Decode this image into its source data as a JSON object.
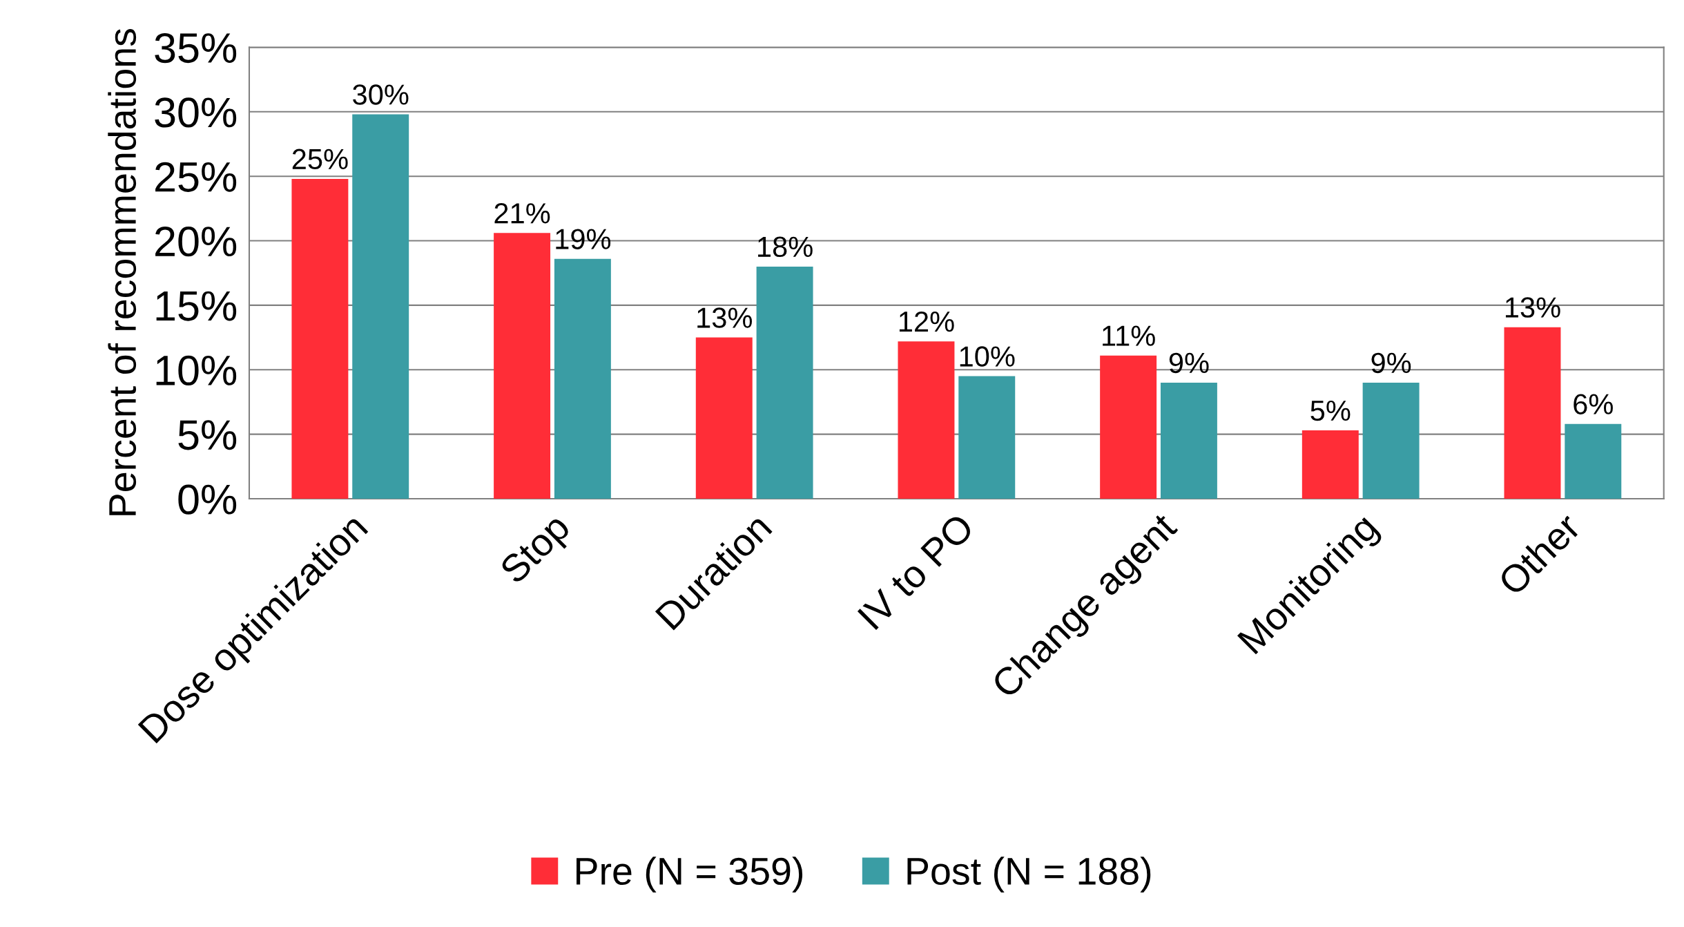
{
  "chart_data": {
    "type": "bar",
    "ylabel": "Percent of recommendations",
    "categories": [
      "Dose optimization",
      "Stop",
      "Duration",
      "IV to PO",
      "Change agent",
      "Monitoring",
      "Other"
    ],
    "series": [
      {
        "name": "Pre (N = 359)",
        "color": "#ff2d37",
        "values": [
          24.8,
          20.6,
          12.5,
          12.2,
          11.1,
          5.3,
          13.3
        ],
        "value_labels": [
          "25%",
          "21%",
          "13%",
          "12%",
          "11%",
          "5%",
          "13%"
        ]
      },
      {
        "name": "Post (N = 188)",
        "color": "#3a9da4",
        "values": [
          29.8,
          18.6,
          18.0,
          9.5,
          9.0,
          9.0,
          5.8
        ],
        "value_labels": [
          "30%",
          "19%",
          "18%",
          "10%",
          "9%",
          "9%",
          "6%"
        ]
      }
    ],
    "ylim": [
      0,
      35
    ],
    "yticks": [
      {
        "value": 0,
        "label": "0%"
      },
      {
        "value": 5,
        "label": "5%"
      },
      {
        "value": 10,
        "label": "10%"
      },
      {
        "value": 15,
        "label": "15%"
      },
      {
        "value": 20,
        "label": "20%"
      },
      {
        "value": 25,
        "label": "25%"
      },
      {
        "value": 30,
        "label": "30%"
      },
      {
        "value": 35,
        "label": "35%"
      }
    ],
    "grid": "y",
    "legend": "bottom"
  }
}
